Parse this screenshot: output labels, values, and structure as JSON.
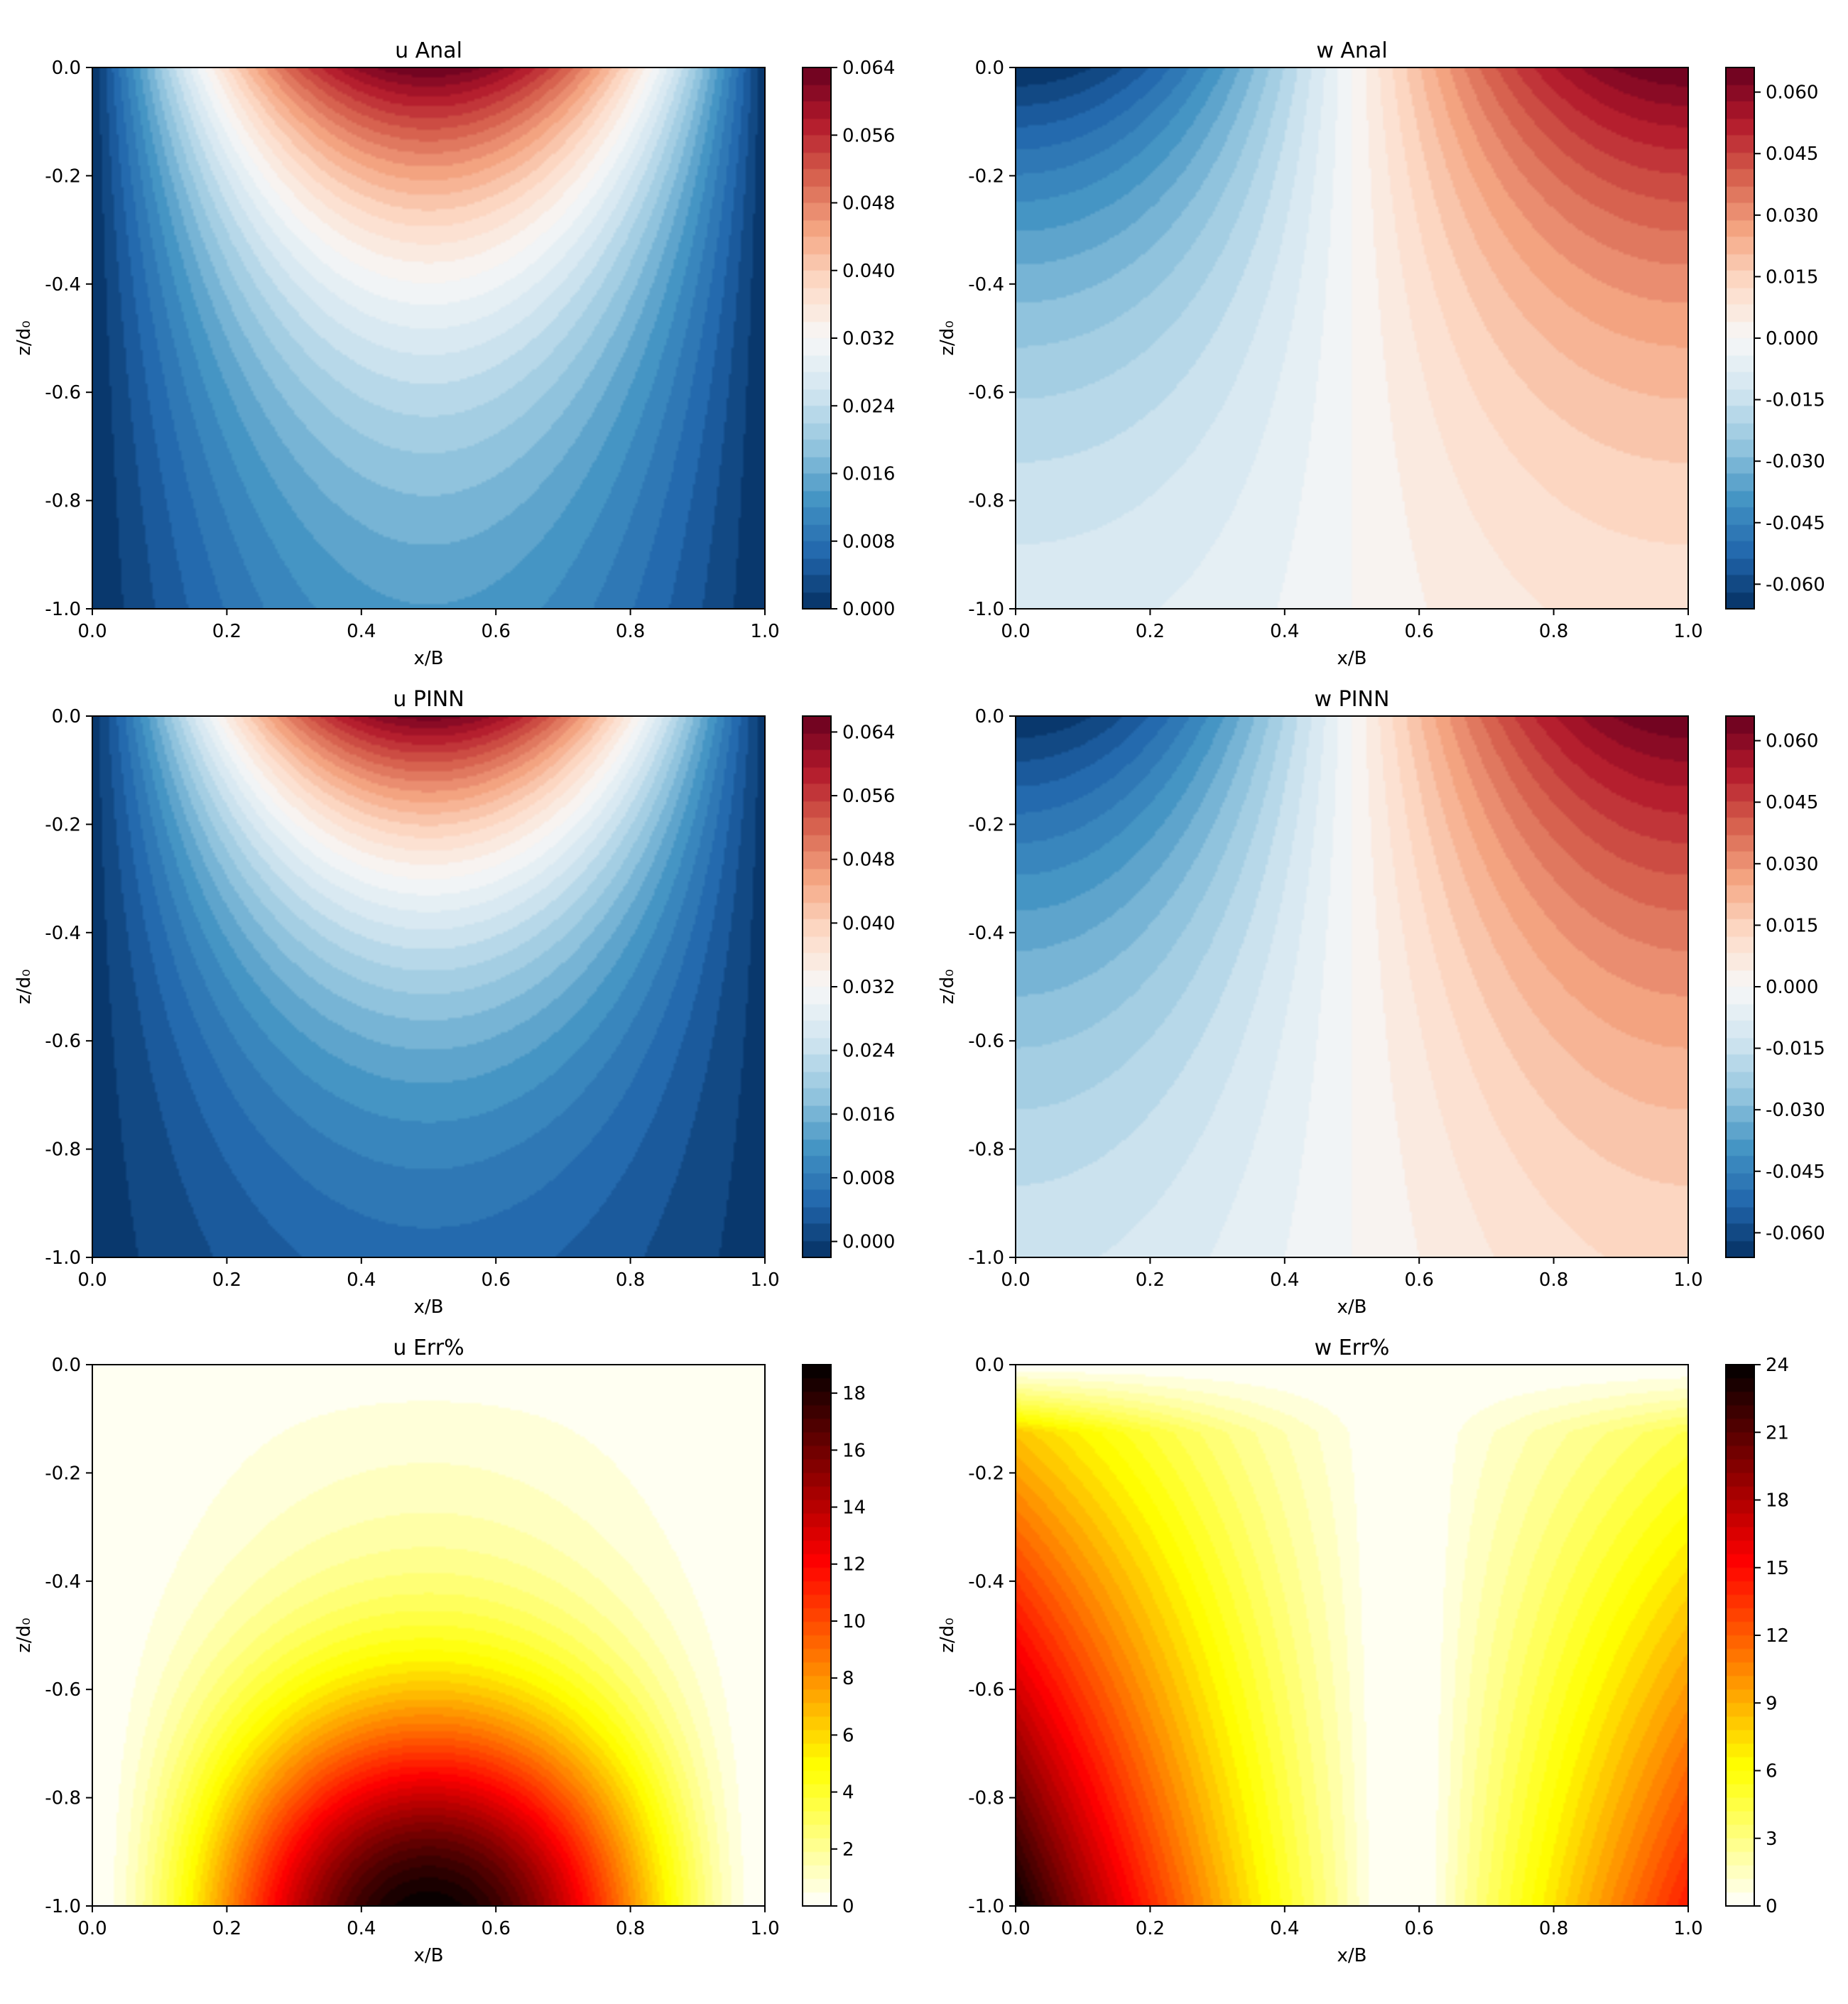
{
  "chart_data": [
    {
      "type": "heatmap",
      "id": "u_anal",
      "title": "u Anal",
      "xlabel": "x/B",
      "ylabel": "z/d₀",
      "xlim": [
        0.0,
        1.0
      ],
      "ylim": [
        -1.0,
        0.0
      ],
      "xticks": [
        "0.0",
        "0.2",
        "0.4",
        "0.6",
        "0.8",
        "1.0"
      ],
      "yticks": [
        "0.0",
        "-0.2",
        "-0.4",
        "-0.6",
        "-0.8",
        "-1.0"
      ],
      "colormap": "RdBu_r",
      "colorbar": {
        "range": [
          0.0,
          0.064
        ],
        "ticks": [
          "0.064",
          "0.056",
          "0.048",
          "0.040",
          "0.032",
          "0.024",
          "0.016",
          "0.008",
          "0.000"
        ]
      },
      "levels": 32
    },
    {
      "type": "heatmap",
      "id": "w_anal",
      "title": "w Anal",
      "xlabel": "x/B",
      "ylabel": "z/d₀",
      "xlim": [
        0.0,
        1.0
      ],
      "ylim": [
        -1.0,
        0.0
      ],
      "xticks": [
        "0.0",
        "0.2",
        "0.4",
        "0.6",
        "0.8",
        "1.0"
      ],
      "yticks": [
        "0.0",
        "-0.2",
        "-0.4",
        "-0.6",
        "-0.8",
        "-1.0"
      ],
      "colormap": "RdBu_r",
      "colorbar": {
        "range": [
          -0.066,
          0.066
        ],
        "ticks": [
          "0.060",
          "0.045",
          "0.030",
          "0.015",
          "0.000",
          "-0.015",
          "-0.030",
          "-0.045",
          "-0.060"
        ]
      },
      "levels": 32
    },
    {
      "type": "heatmap",
      "id": "u_pinn",
      "title": "u PINN",
      "xlabel": "x/B",
      "ylabel": "z/d₀",
      "xlim": [
        0.0,
        1.0
      ],
      "ylim": [
        -1.0,
        0.0
      ],
      "xticks": [
        "0.0",
        "0.2",
        "0.4",
        "0.6",
        "0.8",
        "1.0"
      ],
      "yticks": [
        "0.0",
        "-0.2",
        "-0.4",
        "-0.6",
        "-0.8",
        "-1.0"
      ],
      "colormap": "RdBu_r",
      "colorbar": {
        "range": [
          -0.002,
          0.066
        ],
        "ticks": [
          "0.064",
          "0.056",
          "0.048",
          "0.040",
          "0.032",
          "0.024",
          "0.016",
          "0.008",
          "0.000"
        ]
      },
      "levels": 32
    },
    {
      "type": "heatmap",
      "id": "w_pinn",
      "title": "w PINN",
      "xlabel": "x/B",
      "ylabel": "z/d₀",
      "xlim": [
        0.0,
        1.0
      ],
      "ylim": [
        -1.0,
        0.0
      ],
      "xticks": [
        "0.0",
        "0.2",
        "0.4",
        "0.6",
        "0.8",
        "1.0"
      ],
      "yticks": [
        "0.0",
        "-0.2",
        "-0.4",
        "-0.6",
        "-0.8",
        "-1.0"
      ],
      "colormap": "RdBu_r",
      "colorbar": {
        "range": [
          -0.066,
          0.066
        ],
        "ticks": [
          "0.060",
          "0.045",
          "0.030",
          "0.015",
          "0.000",
          "-0.015",
          "-0.030",
          "-0.045",
          "-0.060"
        ]
      },
      "levels": 32
    },
    {
      "type": "heatmap",
      "id": "u_err",
      "title": "u Err%",
      "xlabel": "x/B",
      "ylabel": "z/d₀",
      "xlim": [
        0.0,
        1.0
      ],
      "ylim": [
        -1.0,
        0.0
      ],
      "xticks": [
        "0.0",
        "0.2",
        "0.4",
        "0.6",
        "0.8",
        "1.0"
      ],
      "yticks": [
        "0.0",
        "-0.2",
        "-0.4",
        "-0.6",
        "-0.8",
        "-1.0"
      ],
      "colormap": "hot_r",
      "colorbar": {
        "range": [
          0,
          19
        ],
        "ticks": [
          "18",
          "16",
          "14",
          "12",
          "10",
          "8",
          "6",
          "4",
          "2",
          "0"
        ]
      },
      "levels": 40
    },
    {
      "type": "heatmap",
      "id": "w_err",
      "title": "w Err%",
      "xlabel": "x/B",
      "ylabel": "z/d₀",
      "xlim": [
        0.0,
        1.0
      ],
      "ylim": [
        -1.0,
        0.0
      ],
      "xticks": [
        "0.0",
        "0.2",
        "0.4",
        "0.6",
        "0.8",
        "1.0"
      ],
      "yticks": [
        "0.0",
        "-0.2",
        "-0.4",
        "-0.6",
        "-0.8",
        "-1.0"
      ],
      "colormap": "hot_r",
      "colorbar": {
        "range": [
          0,
          24
        ],
        "ticks": [
          "24",
          "21",
          "18",
          "15",
          "12",
          "9",
          "6",
          "3",
          "0"
        ]
      },
      "levels": 40
    }
  ]
}
